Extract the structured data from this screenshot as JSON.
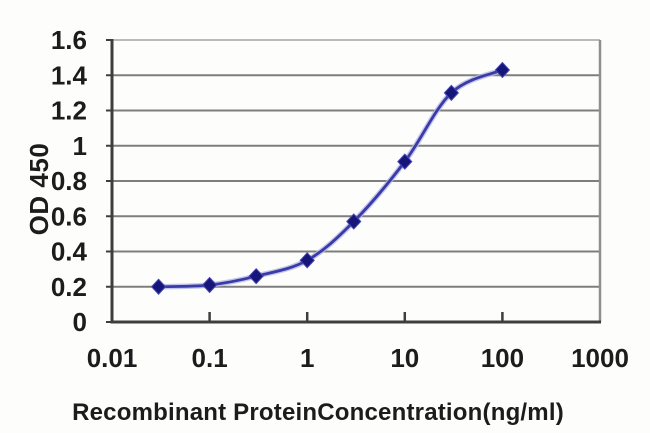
{
  "chart_data": {
    "type": "line",
    "title": "",
    "xlabel": "Recombinant ProteinConcentration(ng/ml)",
    "ylabel": "OD 450",
    "xscale": "log",
    "xlim": [
      0.01,
      1000
    ],
    "ylim": [
      0,
      1.6
    ],
    "x": [
      0.03,
      0.1,
      0.3,
      1,
      3,
      10,
      30,
      100
    ],
    "y": [
      0.2,
      0.21,
      0.26,
      0.35,
      0.57,
      0.91,
      1.3,
      1.43
    ],
    "xtick_values": [
      0.01,
      0.1,
      1,
      10,
      100,
      1000
    ],
    "xtick_labels": [
      "0.01",
      "0.1",
      "1",
      "10",
      "100",
      "1000"
    ],
    "ytick_values": [
      0,
      0.2,
      0.4,
      0.6,
      0.8,
      1,
      1.2,
      1.4,
      1.6
    ],
    "ytick_labels": [
      "0",
      "0.2",
      "0.4",
      "0.6",
      "0.8",
      "1",
      "1.2",
      "1.4",
      "1.6"
    ],
    "grid": true,
    "legend": false,
    "marker": "diamond",
    "colors": {
      "line": "#3a3aa8",
      "line_halo": "#b4b8e6",
      "marker": "#16167a",
      "marker_edge": "#4646b4",
      "grid": "#7e7e7e",
      "axis": "#3e3e3e",
      "plot_top_border": "#bababa",
      "plot_right_border": "#8f8f8f",
      "text": "#1c1c1c",
      "background": "#fdfdfc"
    }
  }
}
